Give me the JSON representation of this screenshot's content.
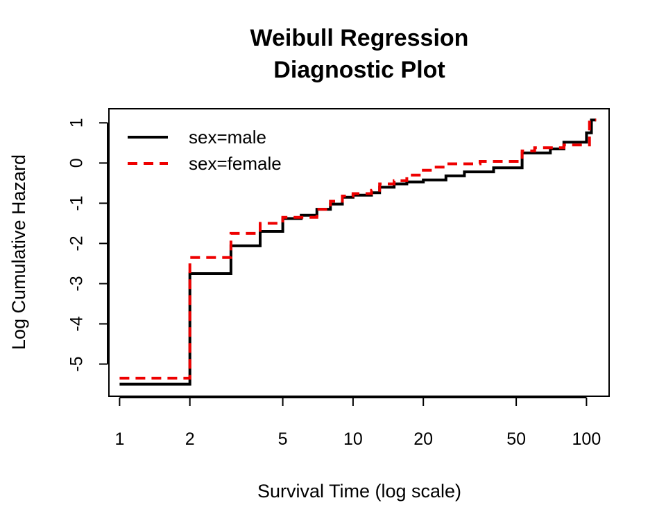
{
  "chart_data": {
    "type": "line",
    "title_lines": [
      "Weibull Regression",
      "Diagnostic Plot"
    ],
    "xlabel": "Survival Time (log scale)",
    "ylabel": "Log Cumulative Hazard",
    "x_scale": "log",
    "xlim": [
      0.9,
      125
    ],
    "ylim": [
      -5.8,
      1.35
    ],
    "x_ticks": [
      1,
      2,
      5,
      10,
      20,
      50,
      100
    ],
    "x_tick_labels": [
      "1",
      "2",
      "5",
      "10",
      "20",
      "50",
      "100"
    ],
    "y_ticks": [
      -5,
      -4,
      -3,
      -2,
      -1,
      0,
      1
    ],
    "y_tick_labels": [
      "-5",
      "-4",
      "-3",
      "-2",
      "-1",
      "0",
      "1"
    ],
    "grid": false,
    "legend_position": "top-left",
    "series": [
      {
        "name": "sex=male",
        "color": "#000000",
        "line_style": "solid",
        "step": true,
        "x": [
          1,
          2,
          3,
          4,
          5,
          6,
          7,
          8,
          9,
          10,
          12,
          13,
          15,
          17,
          20,
          25,
          30,
          40,
          53,
          70,
          80,
          100,
          105,
          110
        ],
        "y": [
          -5.5,
          -2.75,
          -2.06,
          -1.7,
          -1.38,
          -1.3,
          -1.15,
          -1.02,
          -0.85,
          -0.8,
          -0.74,
          -0.6,
          -0.52,
          -0.47,
          -0.42,
          -0.32,
          -0.22,
          -0.12,
          0.25,
          0.35,
          0.52,
          0.75,
          1.07,
          1.07
        ]
      },
      {
        "name": "sex=female",
        "color": "#ee0000",
        "line_style": "dashed",
        "step": true,
        "x": [
          1,
          2,
          3,
          4,
          5,
          7,
          8,
          9,
          10,
          12,
          13,
          15,
          17,
          20,
          22,
          25,
          35,
          53,
          60,
          80,
          103,
          110
        ],
        "y": [
          -5.35,
          -2.35,
          -1.75,
          -1.5,
          -1.35,
          -1.15,
          -0.95,
          -0.82,
          -0.76,
          -0.68,
          -0.52,
          -0.44,
          -0.3,
          -0.18,
          -0.1,
          -0.02,
          0.04,
          0.3,
          0.38,
          0.45,
          1.07,
          1.07
        ]
      }
    ]
  }
}
